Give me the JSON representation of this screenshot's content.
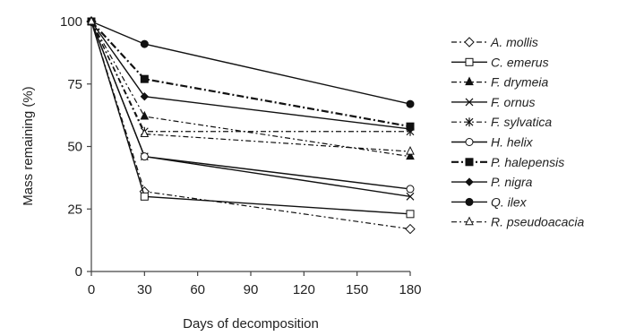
{
  "chart_data": {
    "type": "line",
    "title": "",
    "xlabel": "Days of decomposition",
    "ylabel": "Mass remaining (%)",
    "x": [
      0,
      30,
      180
    ],
    "xlim": [
      0,
      180
    ],
    "ylim": [
      0,
      100
    ],
    "xticks": [
      0,
      30,
      60,
      90,
      120,
      150,
      180
    ],
    "yticks": [
      0,
      25,
      50,
      75,
      100
    ],
    "grid": false,
    "legend_position": "right",
    "series": [
      {
        "name": "A. mollis",
        "values": [
          100,
          32,
          17
        ],
        "marker": "diamond-open",
        "dash": "dash-dot"
      },
      {
        "name": "C. emerus",
        "values": [
          100,
          30,
          23
        ],
        "marker": "square-open",
        "dash": "solid"
      },
      {
        "name": "F. drymeia",
        "values": [
          100,
          62,
          46
        ],
        "marker": "triangle-filled",
        "dash": "dash-dot"
      },
      {
        "name": "F. ornus",
        "values": [
          100,
          46,
          30
        ],
        "marker": "x",
        "dash": "solid"
      },
      {
        "name": "F. sylvatica",
        "values": [
          100,
          56,
          56
        ],
        "marker": "asterisk",
        "dash": "dash-dot"
      },
      {
        "name": "H. helix",
        "values": [
          100,
          46,
          33
        ],
        "marker": "circle-open",
        "dash": "solid"
      },
      {
        "name": "P. halepensis",
        "values": [
          100,
          77,
          58
        ],
        "marker": "square-filled",
        "dash": "dash-dot-bold"
      },
      {
        "name": "P. nigra",
        "values": [
          100,
          70,
          57
        ],
        "marker": "diamond-filled",
        "dash": "solid"
      },
      {
        "name": "Q. ilex",
        "values": [
          100,
          91,
          67
        ],
        "marker": "circle-filled",
        "dash": "solid"
      },
      {
        "name": "R. pseudoacacia",
        "values": [
          100,
          55,
          48
        ],
        "marker": "triangle-open",
        "dash": "dash-dot"
      }
    ]
  }
}
